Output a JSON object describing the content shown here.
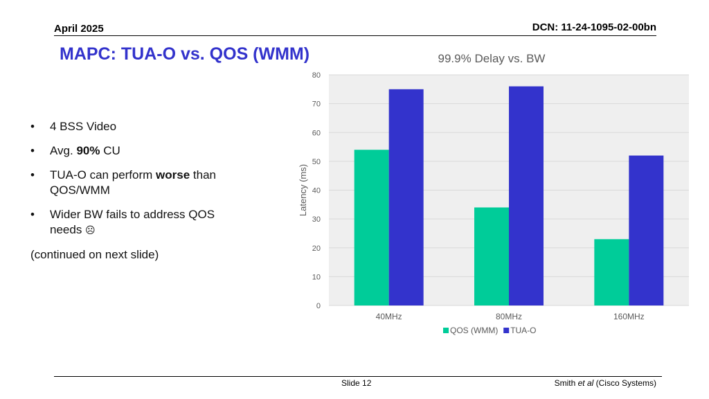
{
  "header": {
    "date": "April 2025",
    "dcn": "DCN: 11-24-1095-02-00bn"
  },
  "slide_title": "MAPC: TUA-O vs. QOS (WMM)",
  "bullets": [
    {
      "parts": [
        {
          "text": "4 BSS Video",
          "bold": false
        }
      ]
    },
    {
      "parts": [
        {
          "text": "Avg. ",
          "bold": false
        },
        {
          "text": "90%",
          "bold": true
        },
        {
          "text": " CU",
          "bold": false
        }
      ]
    },
    {
      "parts": [
        {
          "text": "TUA-O can perform ",
          "bold": false
        },
        {
          "text": "worse",
          "bold": true
        },
        {
          "text": " than QOS/WMM",
          "bold": false
        }
      ]
    },
    {
      "parts": [
        {
          "text": "Wider BW fails to address QOS needs ",
          "bold": false
        }
      ],
      "frown": "☹"
    }
  ],
  "bullet_char": "•",
  "note": "(continued on next slide)",
  "chart_data": {
    "type": "bar",
    "title": "99.9% Delay vs. BW",
    "xlabel": "",
    "ylabel": "Latency (ms)",
    "categories": [
      "40MHz",
      "80MHz",
      "160MHz"
    ],
    "series": [
      {
        "name": "QOS (WMM)",
        "values": [
          54,
          34,
          23
        ],
        "color": "#00cc99"
      },
      {
        "name": "TUA-O",
        "values": [
          75,
          76,
          52
        ],
        "color": "#3333cc"
      }
    ],
    "ylim": [
      0,
      80
    ],
    "yticks": [
      0,
      10,
      20,
      30,
      40,
      50,
      60,
      70,
      80
    ],
    "grid": true,
    "legend": "bottom",
    "plot_background": "#efefef"
  },
  "footer": {
    "slide": "Slide 12",
    "author_name": "Smith ",
    "author_etal": "et al",
    "author_org": " (Cisco Systems)"
  }
}
